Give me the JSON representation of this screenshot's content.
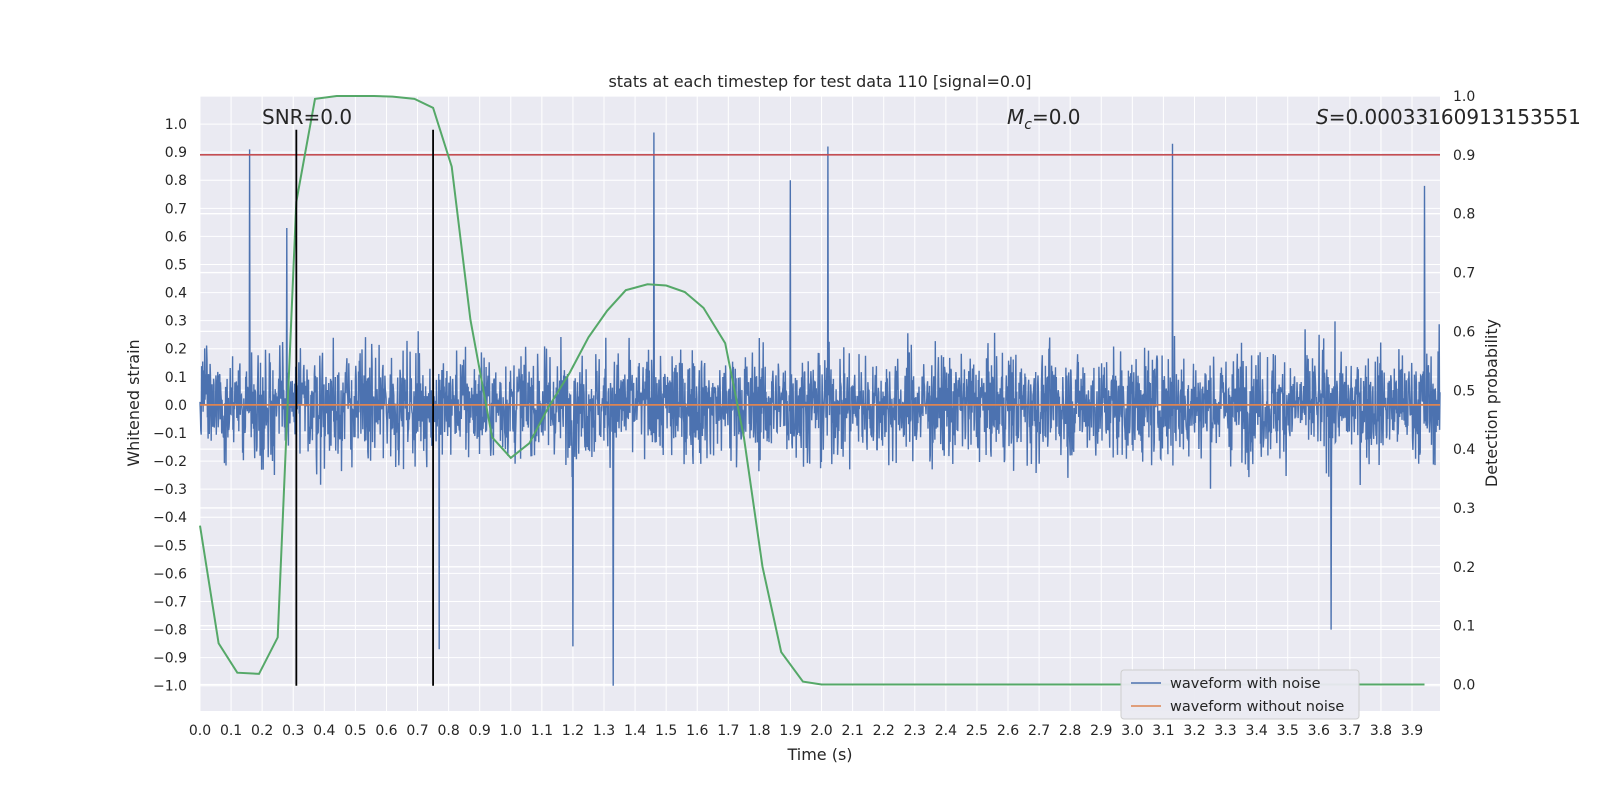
{
  "chart_data": {
    "type": "line",
    "title": "stats at each timestep for test data 110 [signal=0.0]",
    "xlabel": "Time (s)",
    "ylabel": "Whitened strain",
    "y2label": "Detection probability",
    "xlim": [
      0.0,
      3.99
    ],
    "ylim": [
      -1.09,
      1.1
    ],
    "y2lim": [
      -0.045,
      1.0
    ],
    "x_ticks": [
      "0.0",
      "0.1",
      "0.2",
      "0.3",
      "0.4",
      "0.5",
      "0.6",
      "0.7",
      "0.8",
      "0.9",
      "1.0",
      "1.1",
      "1.2",
      "1.3",
      "1.4",
      "1.5",
      "1.6",
      "1.7",
      "1.8",
      "1.9",
      "2.0",
      "2.1",
      "2.2",
      "2.3",
      "2.4",
      "2.5",
      "2.6",
      "2.7",
      "2.8",
      "2.9",
      "3.0",
      "3.1",
      "3.2",
      "3.3",
      "3.4",
      "3.5",
      "3.6",
      "3.7",
      "3.8",
      "3.9"
    ],
    "y_ticks": [
      "1.0",
      "0.9",
      "0.8",
      "0.7",
      "0.6",
      "0.5",
      "0.4",
      "0.3",
      "0.2",
      "0.1",
      "0.0",
      "−0.1",
      "−0.2",
      "−0.3",
      "−0.4",
      "−0.5",
      "−0.6",
      "−0.7",
      "−0.8",
      "−0.9",
      "−1.0"
    ],
    "y2_ticks": [
      "1.0",
      "0.9",
      "0.8",
      "0.7",
      "0.6",
      "0.5",
      "0.4",
      "0.3",
      "0.2",
      "0.1",
      "0.0"
    ],
    "grid": true,
    "legend_position": "bottom-right",
    "annotations": {
      "snr": "SNR=0.0",
      "mc_symbol": "M",
      "mc_sub": "c",
      "mc_value": "=0.0",
      "s_symbol": "S",
      "s_value": "=0.00033160913153551"
    },
    "threshold_y2": 0.9,
    "vlines_x": [
      0.31,
      0.75
    ],
    "series": [
      {
        "name": "waveform with noise",
        "color": "#4c72b0",
        "description_of_data": "noise",
        "amplitude_envelope": 0.55,
        "spikes": [
          [
            0.16,
            0.91
          ],
          [
            1.46,
            0.97
          ],
          [
            2.02,
            0.92
          ],
          [
            3.13,
            0.93
          ],
          [
            1.33,
            -1.0
          ],
          [
            0.77,
            -0.87
          ],
          [
            1.2,
            -0.86
          ],
          [
            3.64,
            -0.8
          ],
          [
            0.28,
            0.63
          ],
          [
            3.94,
            0.78
          ],
          [
            1.9,
            0.8
          ]
        ]
      },
      {
        "name": "waveform without noise",
        "color": "#dd8452",
        "x": [
          0.0,
          3.99
        ],
        "y": [
          0.0,
          0.0
        ]
      },
      {
        "name": "detection probability",
        "color": "#55a868",
        "axis": "y2",
        "x": [
          0.0,
          0.06,
          0.12,
          0.19,
          0.25,
          0.31,
          0.37,
          0.44,
          0.5,
          0.56,
          0.62,
          0.69,
          0.75,
          0.81,
          0.87,
          0.94,
          1.0,
          1.06,
          1.12,
          1.19,
          1.25,
          1.31,
          1.37,
          1.44,
          1.5,
          1.56,
          1.62,
          1.69,
          1.75,
          1.81,
          1.87,
          1.94,
          2.0,
          3.94
        ],
        "y": [
          0.27,
          0.07,
          0.02,
          0.018,
          0.08,
          0.82,
          0.995,
          1.0,
          1.0,
          1.0,
          0.999,
          0.995,
          0.98,
          0.88,
          0.62,
          0.42,
          0.385,
          0.41,
          0.47,
          0.53,
          0.59,
          0.635,
          0.67,
          0.68,
          0.678,
          0.667,
          0.64,
          0.58,
          0.42,
          0.2,
          0.055,
          0.005,
          0.0,
          0.0
        ]
      }
    ]
  }
}
